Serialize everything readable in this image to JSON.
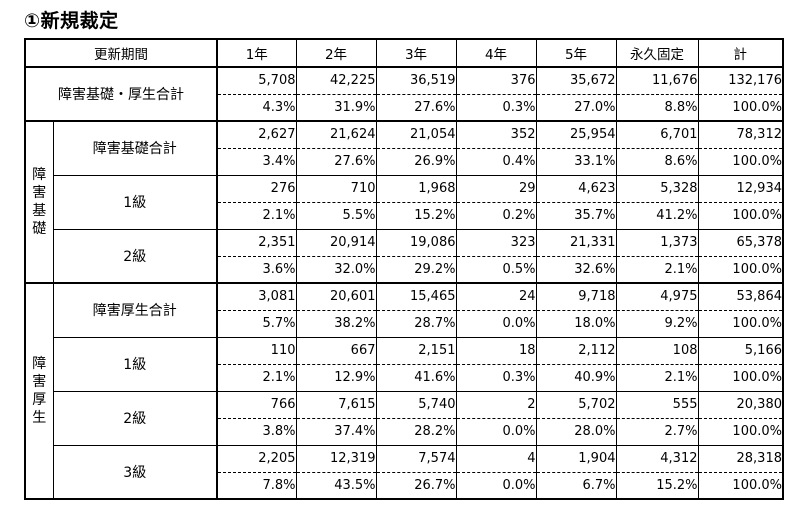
{
  "title": "①新規裁定",
  "table": {
    "header_label": "更新期間",
    "columns": [
      "1年",
      "2年",
      "3年",
      "4年",
      "5年",
      "永久固定",
      "計"
    ],
    "groups": [
      {
        "chars": [],
        "rows": [
          {
            "label": "障害基礎・厚生合計",
            "counts": [
              "5,708",
              "42,225",
              "36,519",
              "376",
              "35,672",
              "11,676",
              "132,176"
            ],
            "pcts": [
              "4.3%",
              "31.9%",
              "27.6%",
              "0.3%",
              "27.0%",
              "8.8%",
              "100.0%"
            ]
          }
        ]
      },
      {
        "chars": [
          "障",
          "害",
          "基",
          "礎"
        ],
        "rows": [
          {
            "label": "障害基礎合計",
            "counts": [
              "2,627",
              "21,624",
              "21,054",
              "352",
              "25,954",
              "6,701",
              "78,312"
            ],
            "pcts": [
              "3.4%",
              "27.6%",
              "26.9%",
              "0.4%",
              "33.1%",
              "8.6%",
              "100.0%"
            ]
          },
          {
            "label": "1級",
            "counts": [
              "276",
              "710",
              "1,968",
              "29",
              "4,623",
              "5,328",
              "12,934"
            ],
            "pcts": [
              "2.1%",
              "5.5%",
              "15.2%",
              "0.2%",
              "35.7%",
              "41.2%",
              "100.0%"
            ]
          },
          {
            "label": "2級",
            "counts": [
              "2,351",
              "20,914",
              "19,086",
              "323",
              "21,331",
              "1,373",
              "65,378"
            ],
            "pcts": [
              "3.6%",
              "32.0%",
              "29.2%",
              "0.5%",
              "32.6%",
              "2.1%",
              "100.0%"
            ]
          }
        ]
      },
      {
        "chars": [
          "障",
          "害",
          "厚",
          "生"
        ],
        "rows": [
          {
            "label": "障害厚生合計",
            "counts": [
              "3,081",
              "20,601",
              "15,465",
              "24",
              "9,718",
              "4,975",
              "53,864"
            ],
            "pcts": [
              "5.7%",
              "38.2%",
              "28.7%",
              "0.0%",
              "18.0%",
              "9.2%",
              "100.0%"
            ]
          },
          {
            "label": "1級",
            "counts": [
              "110",
              "667",
              "2,151",
              "18",
              "2,112",
              "108",
              "5,166"
            ],
            "pcts": [
              "2.1%",
              "12.9%",
              "41.6%",
              "0.3%",
              "40.9%",
              "2.1%",
              "100.0%"
            ]
          },
          {
            "label": "2級",
            "counts": [
              "766",
              "7,615",
              "5,740",
              "2",
              "5,702",
              "555",
              "20,380"
            ],
            "pcts": [
              "3.8%",
              "37.4%",
              "28.2%",
              "0.0%",
              "28.0%",
              "2.7%",
              "100.0%"
            ]
          },
          {
            "label": "3級",
            "counts": [
              "2,205",
              "12,319",
              "7,574",
              "4",
              "1,904",
              "4,312",
              "28,318"
            ],
            "pcts": [
              "7.8%",
              "43.5%",
              "26.7%",
              "0.0%",
              "6.7%",
              "15.2%",
              "100.0%"
            ]
          }
        ]
      }
    ]
  }
}
